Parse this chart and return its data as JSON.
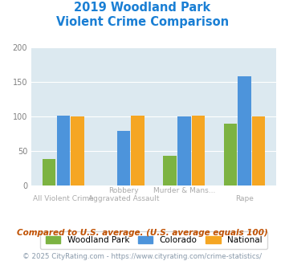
{
  "title_line1": "2019 Woodland Park",
  "title_line2": "Violent Crime Comparison",
  "title_color": "#1a7fd4",
  "woodland_park": [
    38,
    0,
    43,
    90
  ],
  "colorado": [
    101,
    79,
    100,
    158
  ],
  "national": [
    100,
    101,
    101,
    100
  ],
  "woodland_color": "#7cb342",
  "colorado_color": "#4d94db",
  "national_color": "#f5a623",
  "ylim": [
    0,
    200
  ],
  "yticks": [
    0,
    50,
    100,
    150,
    200
  ],
  "background_color": "#dce9f0",
  "legend_labels": [
    "Woodland Park",
    "Colorado",
    "National"
  ],
  "top_labels": [
    "",
    "Robbery",
    "Murder & Mans...",
    ""
  ],
  "bottom_labels": [
    "All Violent Crime",
    "Aggravated Assault",
    "",
    "Rape"
  ],
  "footnote1": "Compared to U.S. average. (U.S. average equals 100)",
  "footnote2": "© 2025 CityRating.com - https://www.cityrating.com/crime-statistics/",
  "footnote1_color": "#c05000",
  "footnote2_color": "#8899aa"
}
